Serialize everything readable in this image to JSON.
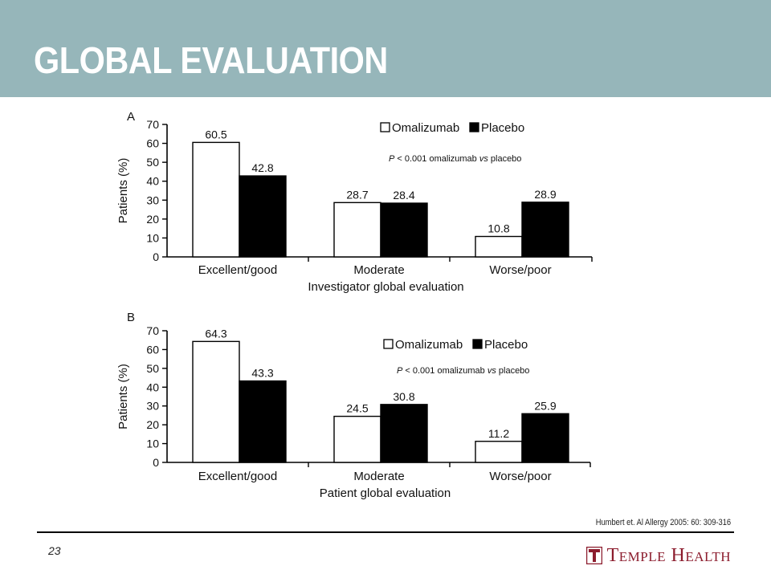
{
  "slide": {
    "title": "GLOBAL EVALUATION",
    "page_number": "23",
    "citation": "Humbert et. Al Allergy 2005: 60: 309-316",
    "brand": "Temple Health",
    "colors": {
      "header_band": "#96b6ba",
      "brand": "#8c1d2e"
    }
  },
  "chart_data": [
    {
      "type": "bar",
      "panel_label": "A",
      "categories": [
        "Excellent/good",
        "Moderate",
        "Worse/poor"
      ],
      "series": [
        {
          "name": "Omalizumab",
          "values": [
            60.5,
            28.7,
            10.8
          ],
          "color": "#ffffff"
        },
        {
          "name": "Placebo",
          "values": [
            42.8,
            28.4,
            28.9
          ],
          "color": "#000000"
        }
      ],
      "value_labels": [
        [
          "60.5",
          "28.7",
          "10.8"
        ],
        [
          "42.8",
          "28.4",
          "28.9"
        ]
      ],
      "xlabel": "Investigator global evaluation",
      "ylabel": "Patients (%)",
      "ylim": [
        0,
        70
      ],
      "yticks": [
        0,
        10,
        20,
        30,
        40,
        50,
        60,
        70
      ],
      "annotation_p": "P",
      "annotation_rest1": " < 0.001 omalizumab ",
      "annotation_vs": "vs",
      "annotation_rest2": " placebo",
      "legend": "top-right",
      "grid": false
    },
    {
      "type": "bar",
      "panel_label": "B",
      "categories": [
        "Excellent/good",
        "Moderate",
        "Worse/poor"
      ],
      "series": [
        {
          "name": "Omalizumab",
          "values": [
            64.3,
            24.5,
            11.2
          ],
          "color": "#ffffff"
        },
        {
          "name": "Placebo",
          "values": [
            43.3,
            30.8,
            25.9
          ],
          "color": "#000000"
        }
      ],
      "value_labels": [
        [
          "64.3",
          "24.5",
          "11.2"
        ],
        [
          "43.3",
          "30.8",
          "25.9"
        ]
      ],
      "xlabel": "Patient global evaluation",
      "ylabel": "Patients (%)",
      "ylim": [
        0,
        70
      ],
      "yticks": [
        0,
        10,
        20,
        30,
        40,
        50,
        60,
        70
      ],
      "annotation_p": "P",
      "annotation_rest1": " < 0.001 omalizumab ",
      "annotation_vs": "vs",
      "annotation_rest2": " placebo",
      "legend": "top-right",
      "grid": false
    }
  ]
}
